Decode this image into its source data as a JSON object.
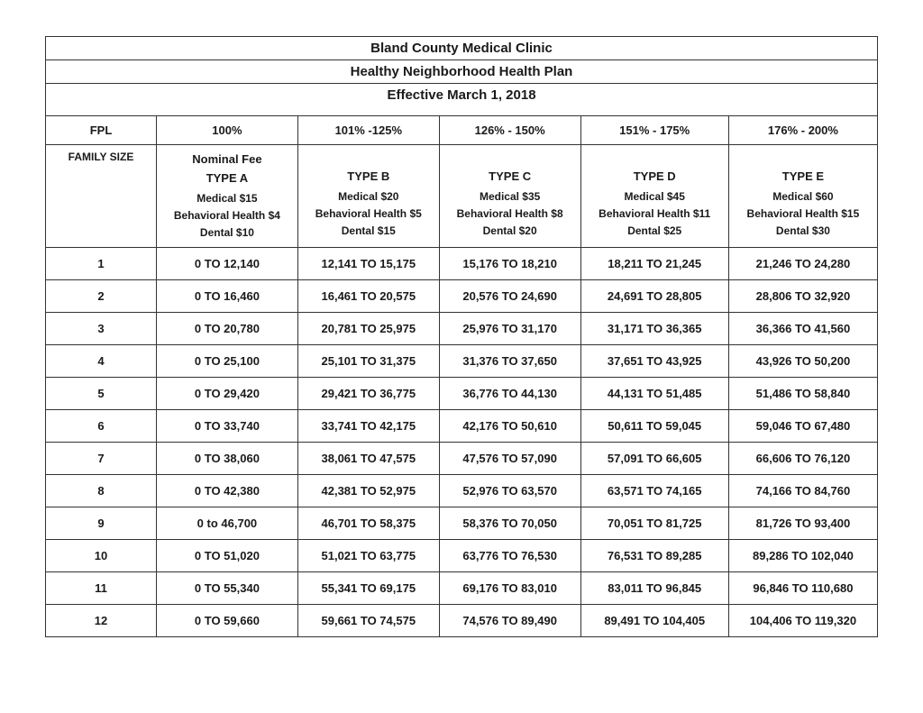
{
  "header": {
    "line1": "Bland County Medical Clinic",
    "line2": "Healthy Neighborhood Health Plan",
    "line3": "Effective March 1,  2018"
  },
  "fpl": {
    "label": "FPL",
    "cols": [
      "100%",
      "101% -125%",
      "126% - 150%",
      "151% - 175%",
      "176% - 200%"
    ]
  },
  "family_size_label": "FAMILY SIZE",
  "types": [
    {
      "nominal": "Nominal Fee",
      "name": "TYPE A",
      "medical": "Medical $15",
      "behavioral": "Behavioral Health $4",
      "dental": "Dental $10"
    },
    {
      "name": "TYPE B",
      "medical": "Medical $20",
      "behavioral": "Behavioral Health $5",
      "dental": "Dental $15"
    },
    {
      "name": "TYPE C",
      "medical": "Medical $35",
      "behavioral": "Behavioral Health $8",
      "dental": "Dental $20"
    },
    {
      "name": "TYPE D",
      "medical": "Medical $45",
      "behavioral": "Behavioral Health $11",
      "dental": "Dental $25"
    },
    {
      "name": "TYPE E",
      "medical": "Medical $60",
      "behavioral": "Behavioral Health $15",
      "dental": "Dental $30"
    }
  ],
  "rows": [
    {
      "size": "1",
      "vals": [
        "0 TO 12,140",
        "12,141 TO 15,175",
        "15,176 TO 18,210",
        "18,211 TO 21,245",
        "21,246 TO 24,280"
      ]
    },
    {
      "size": "2",
      "vals": [
        "0 TO 16,460",
        "16,461 TO 20,575",
        "20,576 TO 24,690",
        "24,691 TO 28,805",
        "28,806 TO 32,920"
      ]
    },
    {
      "size": "3",
      "vals": [
        "0 TO 20,780",
        "20,781 TO 25,975",
        "25,976 TO 31,170",
        "31,171 TO 36,365",
        "36,366 TO 41,560"
      ]
    },
    {
      "size": "4",
      "vals": [
        "0 TO 25,100",
        "25,101 TO 31,375",
        "31,376 TO 37,650",
        "37,651 TO 43,925",
        "43,926 TO 50,200"
      ]
    },
    {
      "size": "5",
      "vals": [
        "0 TO 29,420",
        "29,421 TO 36,775",
        "36,776 TO 44,130",
        "44,131 TO 51,485",
        "51,486 TO 58,840"
      ]
    },
    {
      "size": "6",
      "vals": [
        "0 TO 33,740",
        "33,741 TO 42,175",
        "42,176 TO 50,610",
        "50,611 TO 59,045",
        "59,046 TO 67,480"
      ]
    },
    {
      "size": "7",
      "vals": [
        "0 TO 38,060",
        "38,061 TO 47,575",
        "47,576 TO 57,090",
        "57,091 TO 66,605",
        "66,606 TO 76,120"
      ]
    },
    {
      "size": "8",
      "vals": [
        "0 TO 42,380",
        "42,381 TO 52,975",
        "52,976 TO 63,570",
        "63,571 TO 74,165",
        "74,166 TO 84,760"
      ]
    },
    {
      "size": "9",
      "vals": [
        "0 to 46,700",
        "46,701 TO 58,375",
        "58,376 TO 70,050",
        "70,051 TO 81,725",
        "81,726 TO 93,400"
      ]
    },
    {
      "size": "10",
      "vals": [
        "0 TO 51,020",
        "51,021 TO 63,775",
        "63,776 TO 76,530",
        "76,531 TO 89,285",
        "89,286 TO 102,040"
      ]
    },
    {
      "size": "11",
      "vals": [
        "0 TO 55,340",
        "55,341 TO 69,175",
        "69,176 TO 83,010",
        "83,011 TO 96,845",
        "96,846 TO 110,680"
      ]
    },
    {
      "size": "12",
      "vals": [
        "0 TO 59,660",
        "59,661 TO 74,575",
        "74,576 TO 89,490",
        "89,491 TO 104,405",
        "104,406 TO 119,320"
      ]
    }
  ]
}
